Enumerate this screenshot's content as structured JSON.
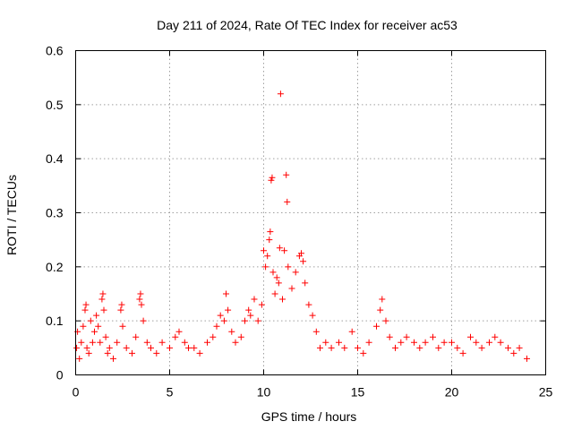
{
  "chart_data": {
    "type": "scatter",
    "title": "Day 211 of 2024, Rate Of TEC Index for receiver ac53",
    "xlabel": "GPS time / hours",
    "ylabel": "ROTI / TECUs",
    "xlim": [
      0,
      25
    ],
    "ylim": [
      0,
      0.6
    ],
    "xticks": [
      0,
      5,
      10,
      15,
      20,
      25
    ],
    "xtick_labels": [
      "0",
      "5",
      "10",
      "15",
      "20",
      "25"
    ],
    "yticks": [
      0,
      0.1,
      0.2,
      0.3,
      0.4,
      0.5,
      0.6
    ],
    "ytick_labels": [
      "0",
      "0.1",
      "0.2",
      "0.3",
      "0.4",
      "0.5",
      "0.6"
    ],
    "grid": true,
    "marker": "plus",
    "color": "#ff0000",
    "series": [
      {
        "points": [
          [
            0.05,
            0.05
          ],
          [
            0.1,
            0.08
          ],
          [
            0.2,
            0.03
          ],
          [
            0.3,
            0.06
          ],
          [
            0.4,
            0.09
          ],
          [
            0.5,
            0.12
          ],
          [
            0.55,
            0.13
          ],
          [
            0.6,
            0.05
          ],
          [
            0.7,
            0.04
          ],
          [
            0.8,
            0.1
          ],
          [
            0.9,
            0.06
          ],
          [
            1.0,
            0.08
          ],
          [
            1.1,
            0.11
          ],
          [
            1.2,
            0.09
          ],
          [
            1.3,
            0.06
          ],
          [
            1.4,
            0.14
          ],
          [
            1.45,
            0.15
          ],
          [
            1.5,
            0.12
          ],
          [
            1.6,
            0.07
          ],
          [
            1.7,
            0.04
          ],
          [
            1.8,
            0.05
          ],
          [
            2.0,
            0.03
          ],
          [
            2.2,
            0.06
          ],
          [
            2.4,
            0.12
          ],
          [
            2.45,
            0.13
          ],
          [
            2.5,
            0.09
          ],
          [
            2.7,
            0.05
          ],
          [
            3.0,
            0.04
          ],
          [
            3.2,
            0.07
          ],
          [
            3.4,
            0.14
          ],
          [
            3.45,
            0.15
          ],
          [
            3.5,
            0.13
          ],
          [
            3.6,
            0.1
          ],
          [
            3.8,
            0.06
          ],
          [
            4.0,
            0.05
          ],
          [
            4.3,
            0.04
          ],
          [
            4.6,
            0.06
          ],
          [
            5.0,
            0.05
          ],
          [
            5.3,
            0.07
          ],
          [
            5.5,
            0.08
          ],
          [
            5.8,
            0.06
          ],
          [
            6.0,
            0.05
          ],
          [
            6.3,
            0.05
          ],
          [
            6.6,
            0.04
          ],
          [
            7.0,
            0.06
          ],
          [
            7.3,
            0.07
          ],
          [
            7.5,
            0.09
          ],
          [
            7.7,
            0.11
          ],
          [
            7.9,
            0.1
          ],
          [
            8.0,
            0.15
          ],
          [
            8.1,
            0.12
          ],
          [
            8.3,
            0.08
          ],
          [
            8.5,
            0.06
          ],
          [
            8.8,
            0.07
          ],
          [
            9.0,
            0.1
          ],
          [
            9.2,
            0.12
          ],
          [
            9.3,
            0.11
          ],
          [
            9.5,
            0.14
          ],
          [
            9.7,
            0.1
          ],
          [
            9.9,
            0.13
          ],
          [
            10.0,
            0.23
          ],
          [
            10.1,
            0.2
          ],
          [
            10.2,
            0.22
          ],
          [
            10.3,
            0.25
          ],
          [
            10.35,
            0.265
          ],
          [
            10.4,
            0.36
          ],
          [
            10.45,
            0.365
          ],
          [
            10.5,
            0.19
          ],
          [
            10.6,
            0.15
          ],
          [
            10.7,
            0.18
          ],
          [
            10.8,
            0.17
          ],
          [
            10.85,
            0.235
          ],
          [
            10.9,
            0.52
          ],
          [
            11.0,
            0.14
          ],
          [
            11.1,
            0.23
          ],
          [
            11.2,
            0.37
          ],
          [
            11.25,
            0.32
          ],
          [
            11.3,
            0.2
          ],
          [
            11.5,
            0.16
          ],
          [
            11.7,
            0.19
          ],
          [
            11.9,
            0.22
          ],
          [
            12.0,
            0.225
          ],
          [
            12.1,
            0.21
          ],
          [
            12.2,
            0.17
          ],
          [
            12.4,
            0.13
          ],
          [
            12.6,
            0.11
          ],
          [
            12.8,
            0.08
          ],
          [
            13.0,
            0.05
          ],
          [
            13.3,
            0.06
          ],
          [
            13.6,
            0.05
          ],
          [
            14.0,
            0.06
          ],
          [
            14.3,
            0.05
          ],
          [
            14.7,
            0.08
          ],
          [
            15.0,
            0.05
          ],
          [
            15.3,
            0.04
          ],
          [
            15.6,
            0.06
          ],
          [
            16.0,
            0.09
          ],
          [
            16.2,
            0.12
          ],
          [
            16.3,
            0.14
          ],
          [
            16.5,
            0.1
          ],
          [
            16.7,
            0.07
          ],
          [
            17.0,
            0.05
          ],
          [
            17.3,
            0.06
          ],
          [
            17.6,
            0.07
          ],
          [
            18.0,
            0.06
          ],
          [
            18.3,
            0.05
          ],
          [
            18.6,
            0.06
          ],
          [
            19.0,
            0.07
          ],
          [
            19.3,
            0.05
          ],
          [
            19.6,
            0.06
          ],
          [
            20.0,
            0.06
          ],
          [
            20.3,
            0.05
          ],
          [
            20.6,
            0.04
          ],
          [
            21.0,
            0.07
          ],
          [
            21.3,
            0.06
          ],
          [
            21.6,
            0.05
          ],
          [
            22.0,
            0.06
          ],
          [
            22.3,
            0.07
          ],
          [
            22.6,
            0.06
          ],
          [
            23.0,
            0.05
          ],
          [
            23.3,
            0.04
          ],
          [
            23.6,
            0.05
          ],
          [
            24.0,
            0.03
          ]
        ]
      }
    ]
  }
}
